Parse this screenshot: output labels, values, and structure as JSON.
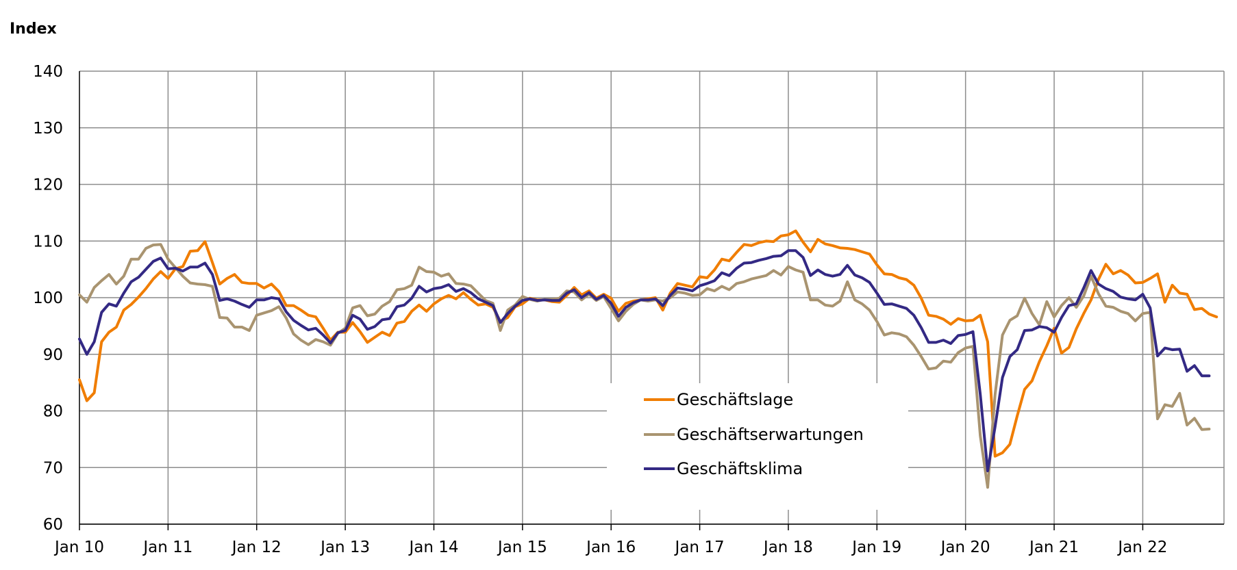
{
  "chart_data": {
    "type": "line",
    "title": "Index",
    "xlabel": "",
    "ylabel": "",
    "ylim": [
      60,
      140
    ],
    "yticks": [
      60,
      70,
      80,
      90,
      100,
      110,
      120,
      130,
      140
    ],
    "xlim": [
      0,
      155
    ],
    "xtick_labels": [
      "Jan 10",
      "Jan 11",
      "Jan 12",
      "Jan 13",
      "Jan 14",
      "Jan 15",
      "Jan 16",
      "Jan 17",
      "Jan 18",
      "Jan 19",
      "Jan 20",
      "Jan 21",
      "Jan 22"
    ],
    "xtick_positions": [
      0,
      12,
      24,
      36,
      48,
      60,
      72,
      84,
      96,
      108,
      120,
      132,
      144
    ],
    "grid": true,
    "legend_position": "bottom-center",
    "series": [
      {
        "name": "Geschäftslage",
        "color": "#F07D00",
        "values": [
          85.5,
          81.8,
          83.2,
          92.2,
          93.9,
          94.8,
          97.8,
          98.8,
          100.1,
          101.6,
          103.3,
          104.6,
          103.4,
          105.1,
          105.5,
          108.2,
          108.3,
          109.9,
          106.2,
          102.4,
          103.4,
          104.1,
          102.7,
          102.5,
          102.5,
          101.7,
          102.4,
          101.1,
          98.6,
          98.6,
          97.8,
          96.9,
          96.6,
          94.6,
          92.5,
          93.9,
          93.9,
          95.6,
          94.0,
          92.1,
          93.0,
          93.9,
          93.3,
          95.5,
          95.8,
          97.6,
          98.7,
          97.6,
          98.9,
          99.8,
          100.4,
          99.8,
          100.9,
          99.7,
          98.7,
          98.9,
          98.3,
          95.8,
          96.5,
          98.4,
          98.9,
          99.9,
          99.6,
          99.6,
          99.3,
          99.2,
          100.4,
          101.8,
          100.5,
          101.2,
          99.9,
          100.6,
          99.9,
          97.6,
          99.0,
          99.4,
          99.6,
          99.8,
          100.0,
          97.8,
          100.8,
          102.5,
          102.2,
          101.9,
          103.7,
          103.5,
          104.9,
          106.8,
          106.5,
          108.0,
          109.4,
          109.2,
          109.7,
          110.0,
          109.9,
          110.9,
          111.1,
          111.8,
          109.8,
          108.1,
          110.3,
          109.5,
          109.2,
          108.8,
          108.7,
          108.5,
          108.1,
          107.7,
          105.8,
          104.2,
          104.1,
          103.5,
          103.2,
          102.2,
          99.9,
          96.9,
          96.7,
          96.2,
          95.3,
          96.3,
          95.9,
          96.0,
          96.9,
          92.2,
          72.0,
          72.6,
          74.1,
          79.1,
          83.8,
          85.3,
          88.7,
          91.5,
          94.6,
          90.2,
          91.2,
          94.5,
          97.2,
          99.6,
          103.2,
          105.9,
          104.2,
          104.8,
          104.0,
          102.6,
          102.7,
          103.4,
          104.2,
          99.2,
          102.2,
          100.8,
          100.6,
          97.9,
          98.1,
          97.1,
          96.6
        ]
      },
      {
        "name": "Geschäftserwartungen",
        "color": "#A99470",
        "values": [
          100.5,
          99.2,
          101.8,
          103.0,
          104.1,
          102.4,
          103.8,
          106.8,
          106.8,
          108.7,
          109.3,
          109.4,
          106.8,
          105.3,
          103.8,
          102.6,
          102.4,
          102.3,
          102.0,
          96.5,
          96.4,
          94.8,
          94.8,
          94.2,
          96.9,
          97.3,
          97.7,
          98.4,
          96.4,
          93.6,
          92.5,
          91.7,
          92.6,
          92.2,
          91.6,
          93.7,
          94.6,
          98.2,
          98.6,
          96.8,
          97.1,
          98.5,
          99.3,
          101.4,
          101.6,
          102.2,
          105.4,
          104.6,
          104.5,
          103.8,
          104.2,
          102.5,
          102.4,
          102.1,
          100.8,
          99.5,
          99.0,
          94.2,
          97.8,
          98.7,
          100.2,
          99.7,
          99.4,
          99.7,
          99.7,
          99.9,
          101.2,
          101.0,
          99.6,
          100.6,
          99.5,
          100.2,
          98.1,
          95.9,
          97.6,
          98.8,
          99.6,
          99.4,
          99.6,
          99.4,
          100.0,
          101.0,
          100.8,
          100.4,
          100.5,
          101.6,
          101.2,
          102.0,
          101.4,
          102.5,
          102.8,
          103.3,
          103.6,
          103.9,
          104.8,
          104.0,
          105.5,
          104.9,
          104.5,
          99.6,
          99.6,
          98.7,
          98.5,
          99.4,
          102.8,
          99.6,
          98.9,
          97.8,
          95.8,
          93.4,
          93.8,
          93.6,
          93.1,
          91.6,
          89.6,
          87.4,
          87.6,
          88.8,
          88.6,
          90.3,
          91.1,
          91.4,
          75.6,
          66.5,
          82.9,
          93.4,
          96.0,
          96.8,
          99.9,
          97.2,
          95.2,
          99.3,
          96.6,
          98.6,
          100.0,
          98.3,
          100.3,
          103.8,
          100.7,
          98.5,
          98.3,
          97.6,
          97.2,
          95.9,
          97.2,
          97.4,
          78.6,
          81.1,
          80.8,
          83.1,
          77.5,
          78.7,
          76.7,
          76.8
        ]
      },
      {
        "name": "Geschäftsklima",
        "color": "#332984",
        "values": [
          92.7,
          90.0,
          92.2,
          97.4,
          98.9,
          98.5,
          100.8,
          102.8,
          103.6,
          105.0,
          106.4,
          107.0,
          105.1,
          105.2,
          104.7,
          105.4,
          105.4,
          106.1,
          104.1,
          99.5,
          99.8,
          99.4,
          98.8,
          98.3,
          99.6,
          99.6,
          100.0,
          99.8,
          97.5,
          96.0,
          95.1,
          94.3,
          94.6,
          93.4,
          92.0,
          93.8,
          94.2,
          96.9,
          96.2,
          94.4,
          94.9,
          96.1,
          96.3,
          98.4,
          98.7,
          99.9,
          102.0,
          101.0,
          101.6,
          101.8,
          102.3,
          101.1,
          101.6,
          100.9,
          99.8,
          99.2,
          98.6,
          95.6,
          97.2,
          98.5,
          99.5,
          99.8,
          99.5,
          99.6,
          99.5,
          99.5,
          100.8,
          101.4,
          100.0,
          100.9,
          99.7,
          100.4,
          99.0,
          96.7,
          98.3,
          99.1,
          99.6,
          99.6,
          99.8,
          98.6,
          100.4,
          101.7,
          101.5,
          101.2,
          102.1,
          102.5,
          103.0,
          104.4,
          103.9,
          105.2,
          106.1,
          106.2,
          106.6,
          106.9,
          107.3,
          107.4,
          108.3,
          108.3,
          107.1,
          103.9,
          104.9,
          104.1,
          103.8,
          104.1,
          105.7,
          104.0,
          103.5,
          102.7,
          100.8,
          98.8,
          98.9,
          98.5,
          98.1,
          96.9,
          94.7,
          92.1,
          92.1,
          92.5,
          91.9,
          93.3,
          93.5,
          94.0,
          82.9,
          69.4,
          77.2,
          85.9,
          89.6,
          90.8,
          94.2,
          94.3,
          94.9,
          94.7,
          93.9,
          96.5,
          98.6,
          98.9,
          101.7,
          104.8,
          102.4,
          101.6,
          101.1,
          100.1,
          99.8,
          99.6,
          100.6,
          98.2,
          89.7,
          91.1,
          90.8,
          90.9,
          87.0,
          88.0,
          86.2,
          86.2
        ]
      }
    ]
  }
}
